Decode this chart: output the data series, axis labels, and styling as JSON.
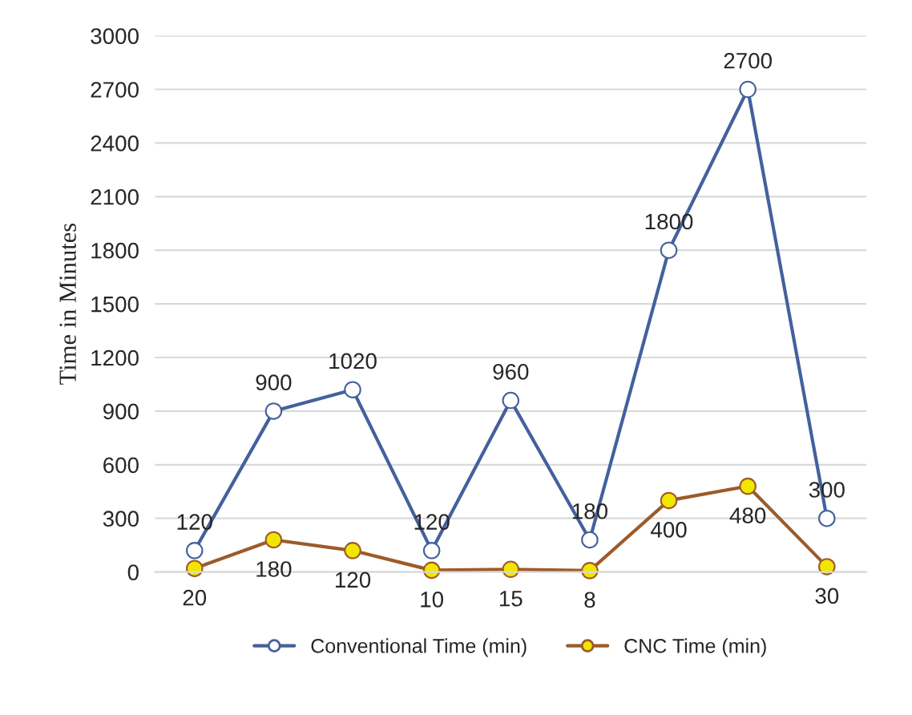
{
  "chart_data": {
    "type": "line",
    "ylabel": "Time in Minutes",
    "categories": [
      null,
      null,
      null,
      null,
      null,
      null,
      null,
      null,
      null
    ],
    "series": [
      {
        "name": "Conventional Time (min)",
        "color": "#44619d",
        "values": [
          120,
          900,
          1020,
          120,
          960,
          180,
          1800,
          2700,
          300
        ]
      },
      {
        "name": "CNC Time (min)",
        "color": "#9c5b2a",
        "values": [
          20,
          180,
          120,
          10,
          15,
          8,
          400,
          480,
          30
        ]
      }
    ],
    "ylim": [
      0,
      3000
    ],
    "yticks": [
      0,
      300,
      600,
      900,
      1200,
      1500,
      1800,
      2100,
      2400,
      2700,
      3000
    ],
    "grid": "y",
    "legend": "bottom",
    "marker": "circle",
    "data_labels": true
  }
}
